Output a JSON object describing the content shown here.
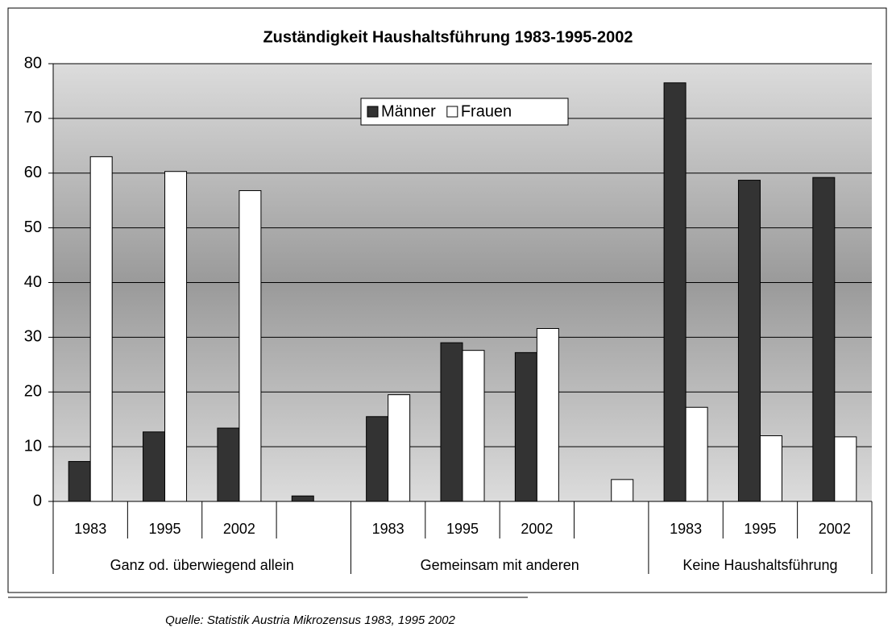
{
  "chart_data": {
    "type": "bar",
    "title": "Zuständigkeit Haushaltsführung 1983-1995-2002",
    "categories": [
      "1983",
      "1995",
      "2002",
      null,
      "1983",
      "1995",
      "2002",
      null,
      "1983",
      "1995",
      "2002"
    ],
    "groups": [
      "Ganz od. überwiegend allein",
      "Gemeinsam mit anderen",
      "Keine Haushaltsführung"
    ],
    "series": [
      {
        "name": "Männer",
        "color": "#333333",
        "values": [
          7.3,
          12.7,
          13.4,
          1,
          15.5,
          29,
          27.2,
          null,
          76.5,
          58.7,
          59.2
        ]
      },
      {
        "name": "Frauen",
        "color": "#ffffff",
        "values": [
          63,
          60.3,
          56.8,
          null,
          19.5,
          27.6,
          31.6,
          4,
          17.2,
          12,
          11.8
        ]
      }
    ],
    "ylim": [
      0,
      80
    ],
    "yticks": [
      0,
      10,
      20,
      30,
      40,
      50,
      60,
      70,
      80
    ],
    "grid": true,
    "legend": "top",
    "source": "Quelle: Statistik Austria Mikrozensus 1983, 1995 2002"
  }
}
